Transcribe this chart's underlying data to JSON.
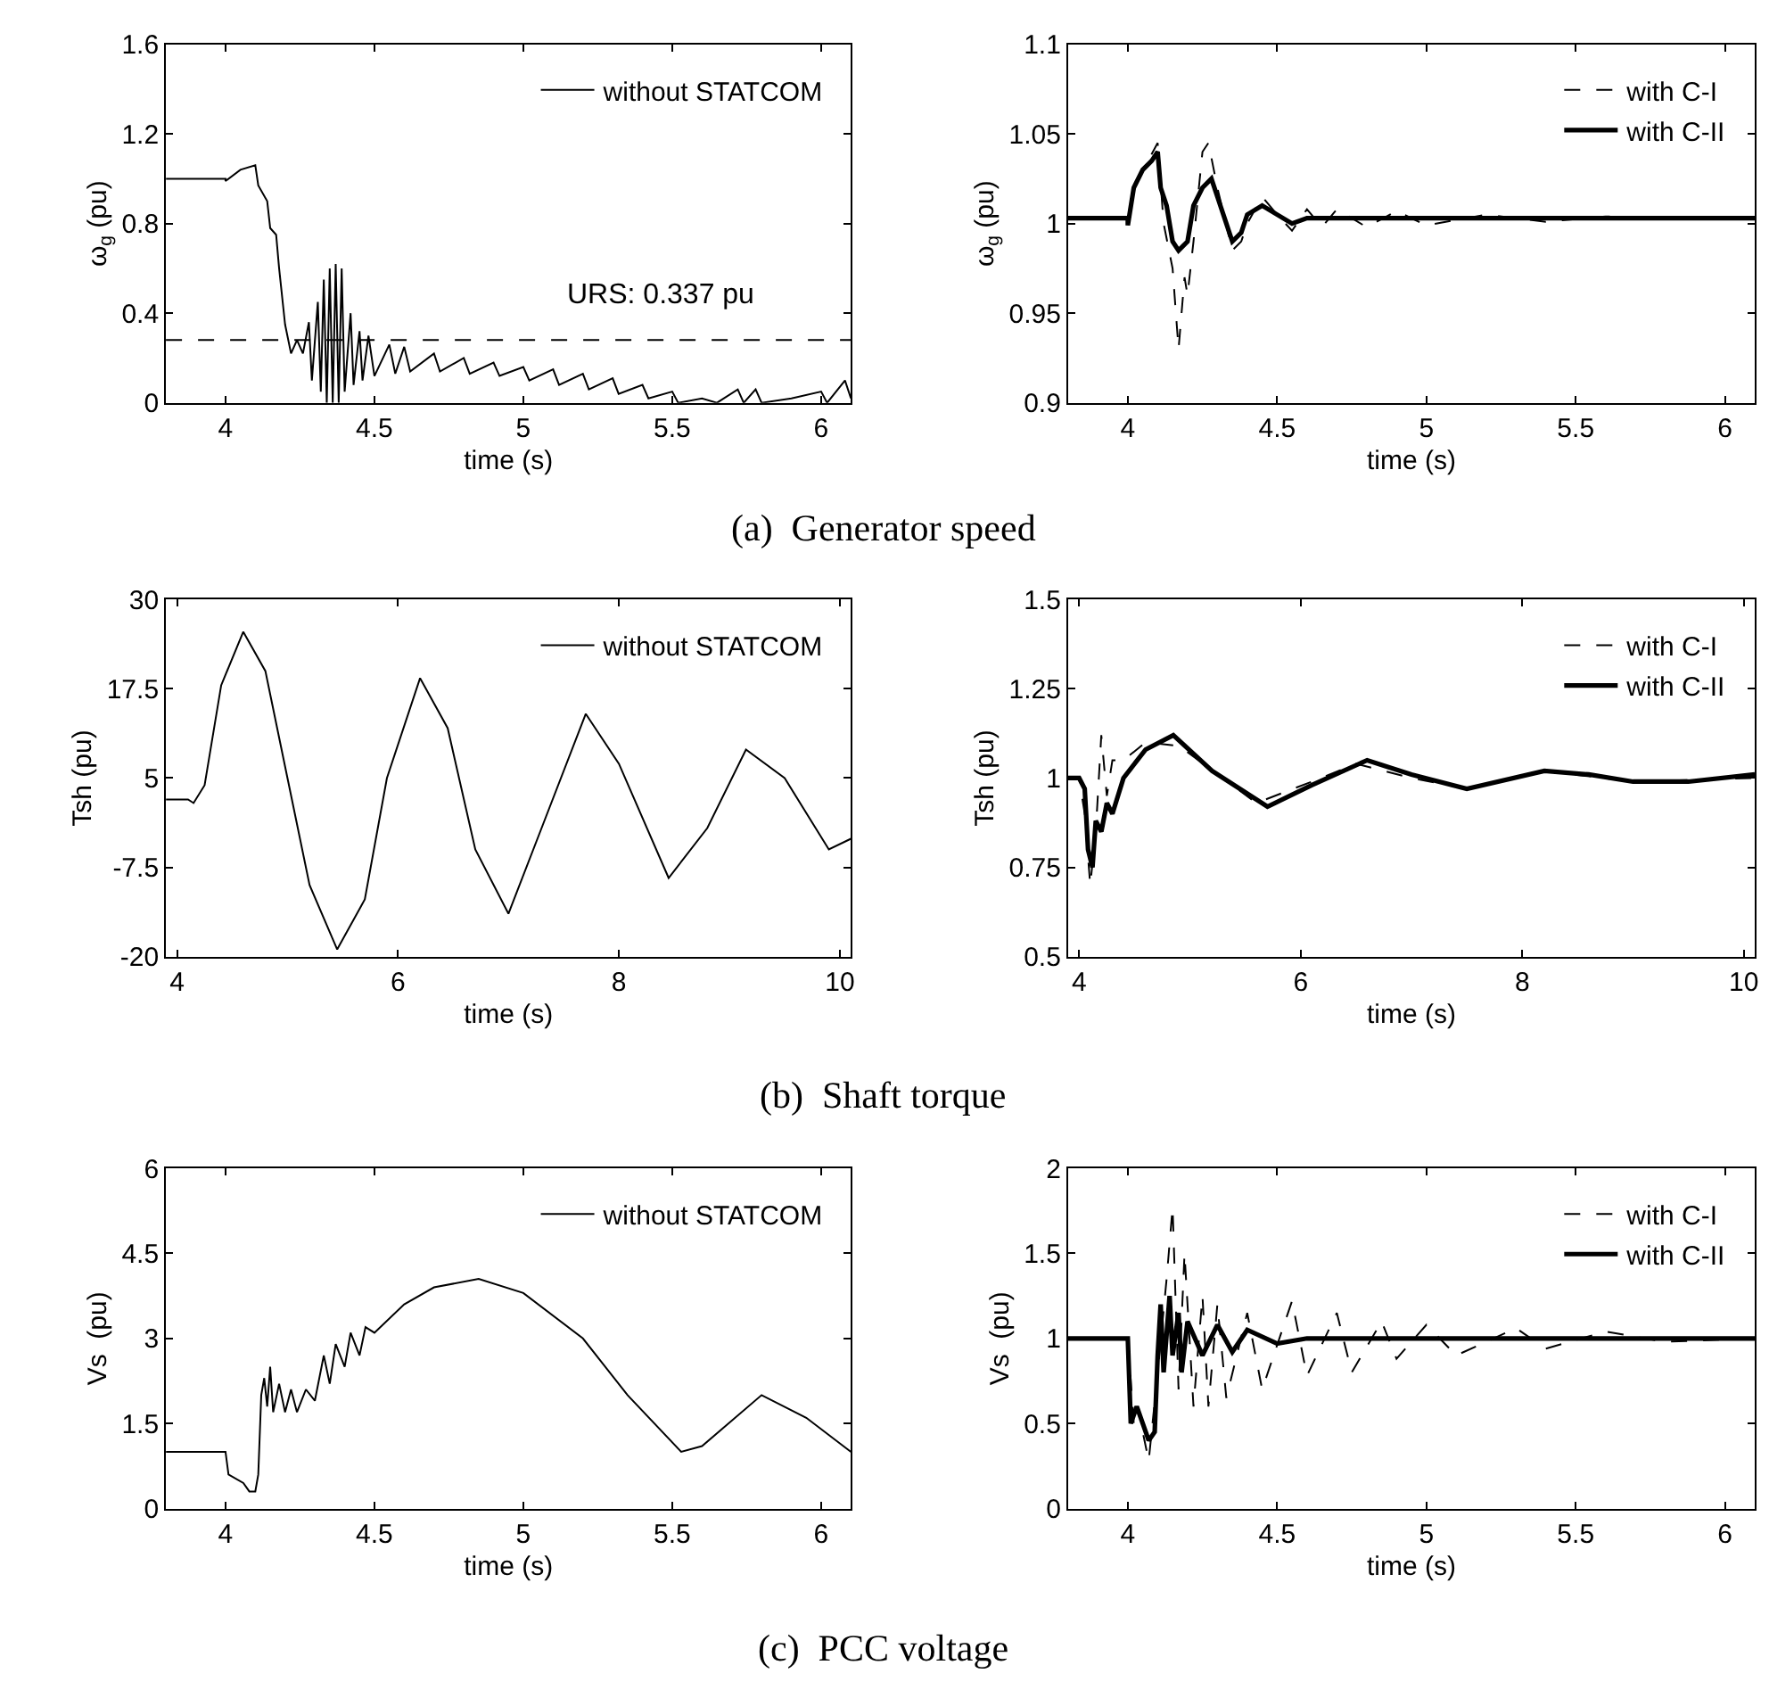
{
  "chart_data": [
    {
      "type": "line",
      "xlabel": "time (s)",
      "ylabel": "ω$_{g}$ (pu)",
      "xlim": [
        3.8,
        6.1
      ],
      "xticks": [
        4,
        4.5,
        5,
        5.5,
        6
      ],
      "ylim": [
        0,
        1.6
      ],
      "yticks": [
        0,
        0.4,
        0.8,
        1.2,
        1.6
      ],
      "legend": "top right",
      "marker": "none",
      "annotations": [
        "(a)  Generator speed",
        "URS: 0.337 pu"
      ],
      "ref_lines": [
        {
          "axis": "y",
          "value": 0.28,
          "color": "#000000",
          "line_style": "dashed"
        }
      ],
      "series": [
        {
          "name": "without STATCOM",
          "color": "#000000",
          "line_style": "solid",
          "x": [
            3.8,
            4.0,
            4.0,
            4.05,
            4.1,
            4.11,
            4.14,
            4.15,
            4.17,
            4.18,
            4.2,
            4.22,
            4.24,
            4.26,
            4.28,
            4.29,
            4.31,
            4.32,
            4.33,
            4.34,
            4.35,
            4.36,
            4.37,
            4.38,
            4.39,
            4.4,
            4.42,
            4.43,
            4.45,
            4.46,
            4.48,
            4.5,
            4.55,
            4.57,
            4.6,
            4.62,
            4.7,
            4.72,
            4.8,
            4.82,
            4.9,
            4.92,
            5.0,
            5.02,
            5.1,
            5.12,
            5.2,
            5.22,
            5.3,
            5.32,
            5.4,
            5.42,
            5.5,
            5.52,
            5.6,
            5.65,
            5.72,
            5.74,
            5.78,
            5.8,
            5.9,
            6.0,
            6.02,
            6.08,
            6.1
          ],
          "values": [
            1.0,
            1.0,
            0.99,
            1.04,
            1.06,
            0.97,
            0.9,
            0.78,
            0.75,
            0.6,
            0.35,
            0.22,
            0.28,
            0.22,
            0.36,
            0.1,
            0.45,
            0.05,
            0.55,
            0.0,
            0.6,
            0.0,
            0.62,
            0.0,
            0.6,
            0.05,
            0.4,
            0.08,
            0.32,
            0.1,
            0.3,
            0.12,
            0.26,
            0.13,
            0.25,
            0.14,
            0.22,
            0.14,
            0.2,
            0.13,
            0.18,
            0.12,
            0.16,
            0.1,
            0.15,
            0.08,
            0.13,
            0.06,
            0.11,
            0.04,
            0.08,
            0.02,
            0.05,
            0.0,
            0.02,
            0.0,
            0.06,
            0.0,
            0.06,
            0.0,
            0.02,
            0.05,
            0.0,
            0.1,
            0.02
          ]
        }
      ]
    },
    {
      "type": "line",
      "xlabel": "time (s)",
      "ylabel": "ω$_{g}$ (pu)",
      "xlim": [
        3.8,
        6.1
      ],
      "xticks": [
        4,
        4.5,
        5,
        5.5,
        6
      ],
      "ylim": [
        0.9,
        1.1
      ],
      "yticks": [
        0.9,
        0.95,
        1,
        1.05,
        1.1
      ],
      "legend": "top right",
      "marker": "none",
      "series": [
        {
          "name": "with C-I",
          "color": "#000000",
          "line_style": "dashed",
          "x": [
            3.8,
            4.0,
            4.02,
            4.1,
            4.12,
            4.15,
            4.17,
            4.19,
            4.2,
            4.22,
            4.25,
            4.27,
            4.3,
            4.35,
            4.38,
            4.4,
            4.45,
            4.5,
            4.55,
            4.6,
            4.65,
            4.7,
            4.8,
            4.9,
            5.0,
            5.2,
            5.4,
            5.6,
            6.1
          ],
          "values": [
            1.003,
            1.003,
            1.02,
            1.045,
            1.0,
            0.975,
            0.93,
            0.97,
            0.96,
            0.99,
            1.04,
            1.045,
            1.02,
            0.985,
            0.99,
            1.0,
            1.015,
            1.005,
            0.996,
            1.008,
            0.998,
            1.008,
            0.998,
            1.007,
            0.999,
            1.005,
            1.001,
            1.004,
            1.003
          ]
        },
        {
          "name": "with C-II",
          "color": "#000000",
          "line_style": "solid",
          "x": [
            3.8,
            4.0,
            4.0,
            4.02,
            4.05,
            4.08,
            4.1,
            4.11,
            4.13,
            4.15,
            4.17,
            4.2,
            4.22,
            4.25,
            4.28,
            4.3,
            4.33,
            4.35,
            4.38,
            4.4,
            4.45,
            4.5,
            4.55,
            4.6,
            5.0,
            6.1
          ],
          "values": [
            1.003,
            1.003,
            0.999,
            1.02,
            1.03,
            1.035,
            1.04,
            1.02,
            1.01,
            0.99,
            0.985,
            0.99,
            1.01,
            1.02,
            1.025,
            1.015,
            1.0,
            0.99,
            0.995,
            1.005,
            1.01,
            1.005,
            1.0,
            1.003,
            1.003,
            1.003
          ]
        }
      ]
    },
    {
      "type": "line",
      "xlabel": "time (s)",
      "ylabel": "Tsh (pu)",
      "xlim": [
        3.9,
        10.1
      ],
      "xticks": [
        4,
        6,
        8,
        10
      ],
      "ylim": [
        -20,
        30
      ],
      "yticks": [
        -20,
        -7.5,
        5,
        17.5,
        30
      ],
      "legend": "top right",
      "marker": "none",
      "annotations": [
        "(b)  Shaft torque"
      ],
      "series": [
        {
          "name": "without STATCOM",
          "color": "#000000",
          "line_style": "solid",
          "x": [
            3.9,
            4.1,
            4.15,
            4.25,
            4.4,
            4.6,
            4.8,
            5.0,
            5.2,
            5.45,
            5.7,
            5.9,
            6.2,
            6.45,
            6.7,
            7.0,
            7.3,
            7.7,
            8.0,
            8.45,
            8.8,
            9.15,
            9.5,
            9.9,
            10.1
          ],
          "values": [
            2,
            2,
            1.5,
            4,
            18,
            25.5,
            20,
            5,
            -10,
            -19,
            -12,
            5,
            19,
            12,
            -5,
            -14,
            -2,
            14,
            7,
            -9,
            -2,
            9,
            5,
            -5,
            -3.5
          ]
        }
      ]
    },
    {
      "type": "line",
      "xlabel": "time (s)",
      "ylabel": "Tsh (pu)",
      "xlim": [
        3.9,
        10.1
      ],
      "xticks": [
        4,
        6,
        8,
        10
      ],
      "ylim": [
        0.5,
        1.5
      ],
      "yticks": [
        0.5,
        0.75,
        1,
        1.25,
        1.5
      ],
      "legend": "top right",
      "marker": "none",
      "series": [
        {
          "name": "with C-I",
          "color": "#000000",
          "line_style": "dashed",
          "x": [
            3.9,
            4.0,
            4.05,
            4.1,
            4.15,
            4.2,
            4.25,
            4.3,
            4.4,
            4.6,
            4.9,
            5.3,
            5.6,
            6.1,
            6.5,
            7.0,
            7.5,
            8.2,
            9.0,
            10.1
          ],
          "values": [
            1,
            1,
            0.9,
            0.7,
            0.85,
            1.12,
            0.95,
            1.05,
            1.05,
            1.1,
            1.09,
            1.0,
            0.93,
            0.99,
            1.04,
            1.0,
            0.97,
            1.02,
            0.99,
            1.0
          ]
        },
        {
          "name": "with C-II",
          "color": "#000000",
          "line_style": "solid",
          "x": [
            3.9,
            4.0,
            4.05,
            4.08,
            4.12,
            4.15,
            4.2,
            4.25,
            4.3,
            4.4,
            4.6,
            4.85,
            5.2,
            5.7,
            6.1,
            6.6,
            7.0,
            7.5,
            8.2,
            8.6,
            9.0,
            9.5,
            10.1
          ],
          "values": [
            1,
            1,
            0.97,
            0.8,
            0.75,
            0.88,
            0.85,
            0.93,
            0.9,
            1.0,
            1.08,
            1.12,
            1.02,
            0.92,
            0.98,
            1.05,
            1.01,
            0.97,
            1.02,
            1.01,
            0.99,
            0.99,
            1.01
          ]
        }
      ]
    },
    {
      "type": "line",
      "xlabel": "time (s)",
      "ylabel": "Vs  (pu)",
      "xlim": [
        3.8,
        6.1
      ],
      "xticks": [
        4,
        4.5,
        5,
        5.5,
        6
      ],
      "ylim": [
        0,
        6
      ],
      "yticks": [
        0,
        1.5,
        3,
        4.5,
        6
      ],
      "legend": "top right",
      "marker": "none",
      "annotations": [
        "(c)  PCC voltage"
      ],
      "series": [
        {
          "name": "without STATCOM",
          "color": "#000000",
          "line_style": "solid",
          "x": [
            3.8,
            4.0,
            4.01,
            4.06,
            4.08,
            4.1,
            4.11,
            4.12,
            4.13,
            4.14,
            4.15,
            4.16,
            4.18,
            4.2,
            4.22,
            4.24,
            4.27,
            4.3,
            4.33,
            4.35,
            4.37,
            4.4,
            4.42,
            4.45,
            4.47,
            4.5,
            4.6,
            4.7,
            4.85,
            5.0,
            5.2,
            5.35,
            5.53,
            5.6,
            5.8,
            5.95,
            6.1
          ],
          "values": [
            1,
            1,
            0.6,
            0.45,
            0.3,
            0.3,
            0.6,
            2.0,
            2.3,
            1.8,
            2.5,
            1.7,
            2.2,
            1.7,
            2.1,
            1.7,
            2.1,
            1.9,
            2.7,
            2.2,
            2.9,
            2.5,
            3.1,
            2.7,
            3.2,
            3.1,
            3.6,
            3.9,
            4.05,
            3.8,
            3.0,
            2.0,
            1.0,
            1.1,
            2.0,
            1.6,
            1.0
          ]
        }
      ]
    },
    {
      "type": "line",
      "xlabel": "time (s)",
      "ylabel": "Vs  (pu)",
      "xlim": [
        3.8,
        6.1
      ],
      "xticks": [
        4,
        4.5,
        5,
        5.5,
        6
      ],
      "ylim": [
        0,
        2
      ],
      "yticks": [
        0,
        0.5,
        1,
        1.5,
        2
      ],
      "legend": "top right",
      "marker": "none",
      "series": [
        {
          "name": "with C-I",
          "color": "#000000",
          "line_style": "dashed",
          "x": [
            3.8,
            4.0,
            4.02,
            4.05,
            4.07,
            4.1,
            4.13,
            4.15,
            4.17,
            4.19,
            4.22,
            4.25,
            4.27,
            4.3,
            4.33,
            4.4,
            4.45,
            4.55,
            4.6,
            4.7,
            4.75,
            4.85,
            4.9,
            5.0,
            5.1,
            5.3,
            5.4,
            5.6,
            5.8,
            6.1
          ],
          "values": [
            1,
            1,
            0.5,
            0.45,
            0.28,
            0.8,
            1.35,
            1.77,
            0.7,
            1.5,
            0.6,
            1.25,
            0.6,
            1.2,
            0.65,
            1.15,
            0.7,
            1.22,
            0.78,
            1.15,
            0.8,
            1.1,
            0.88,
            1.08,
            0.9,
            1.06,
            0.94,
            1.04,
            0.98,
            1.0
          ]
        },
        {
          "name": "with C-II",
          "color": "#000000",
          "line_style": "solid",
          "x": [
            3.8,
            4.0,
            4.01,
            4.03,
            4.05,
            4.07,
            4.09,
            4.1,
            4.11,
            4.12,
            4.14,
            4.15,
            4.17,
            4.18,
            4.2,
            4.25,
            4.3,
            4.35,
            4.4,
            4.5,
            4.6,
            6.1
          ],
          "values": [
            1,
            1,
            0.5,
            0.6,
            0.5,
            0.4,
            0.45,
            0.9,
            1.2,
            0.8,
            1.25,
            0.9,
            1.15,
            0.8,
            1.1,
            0.9,
            1.08,
            0.92,
            1.05,
            0.97,
            1.0,
            1.0
          ]
        }
      ]
    }
  ]
}
